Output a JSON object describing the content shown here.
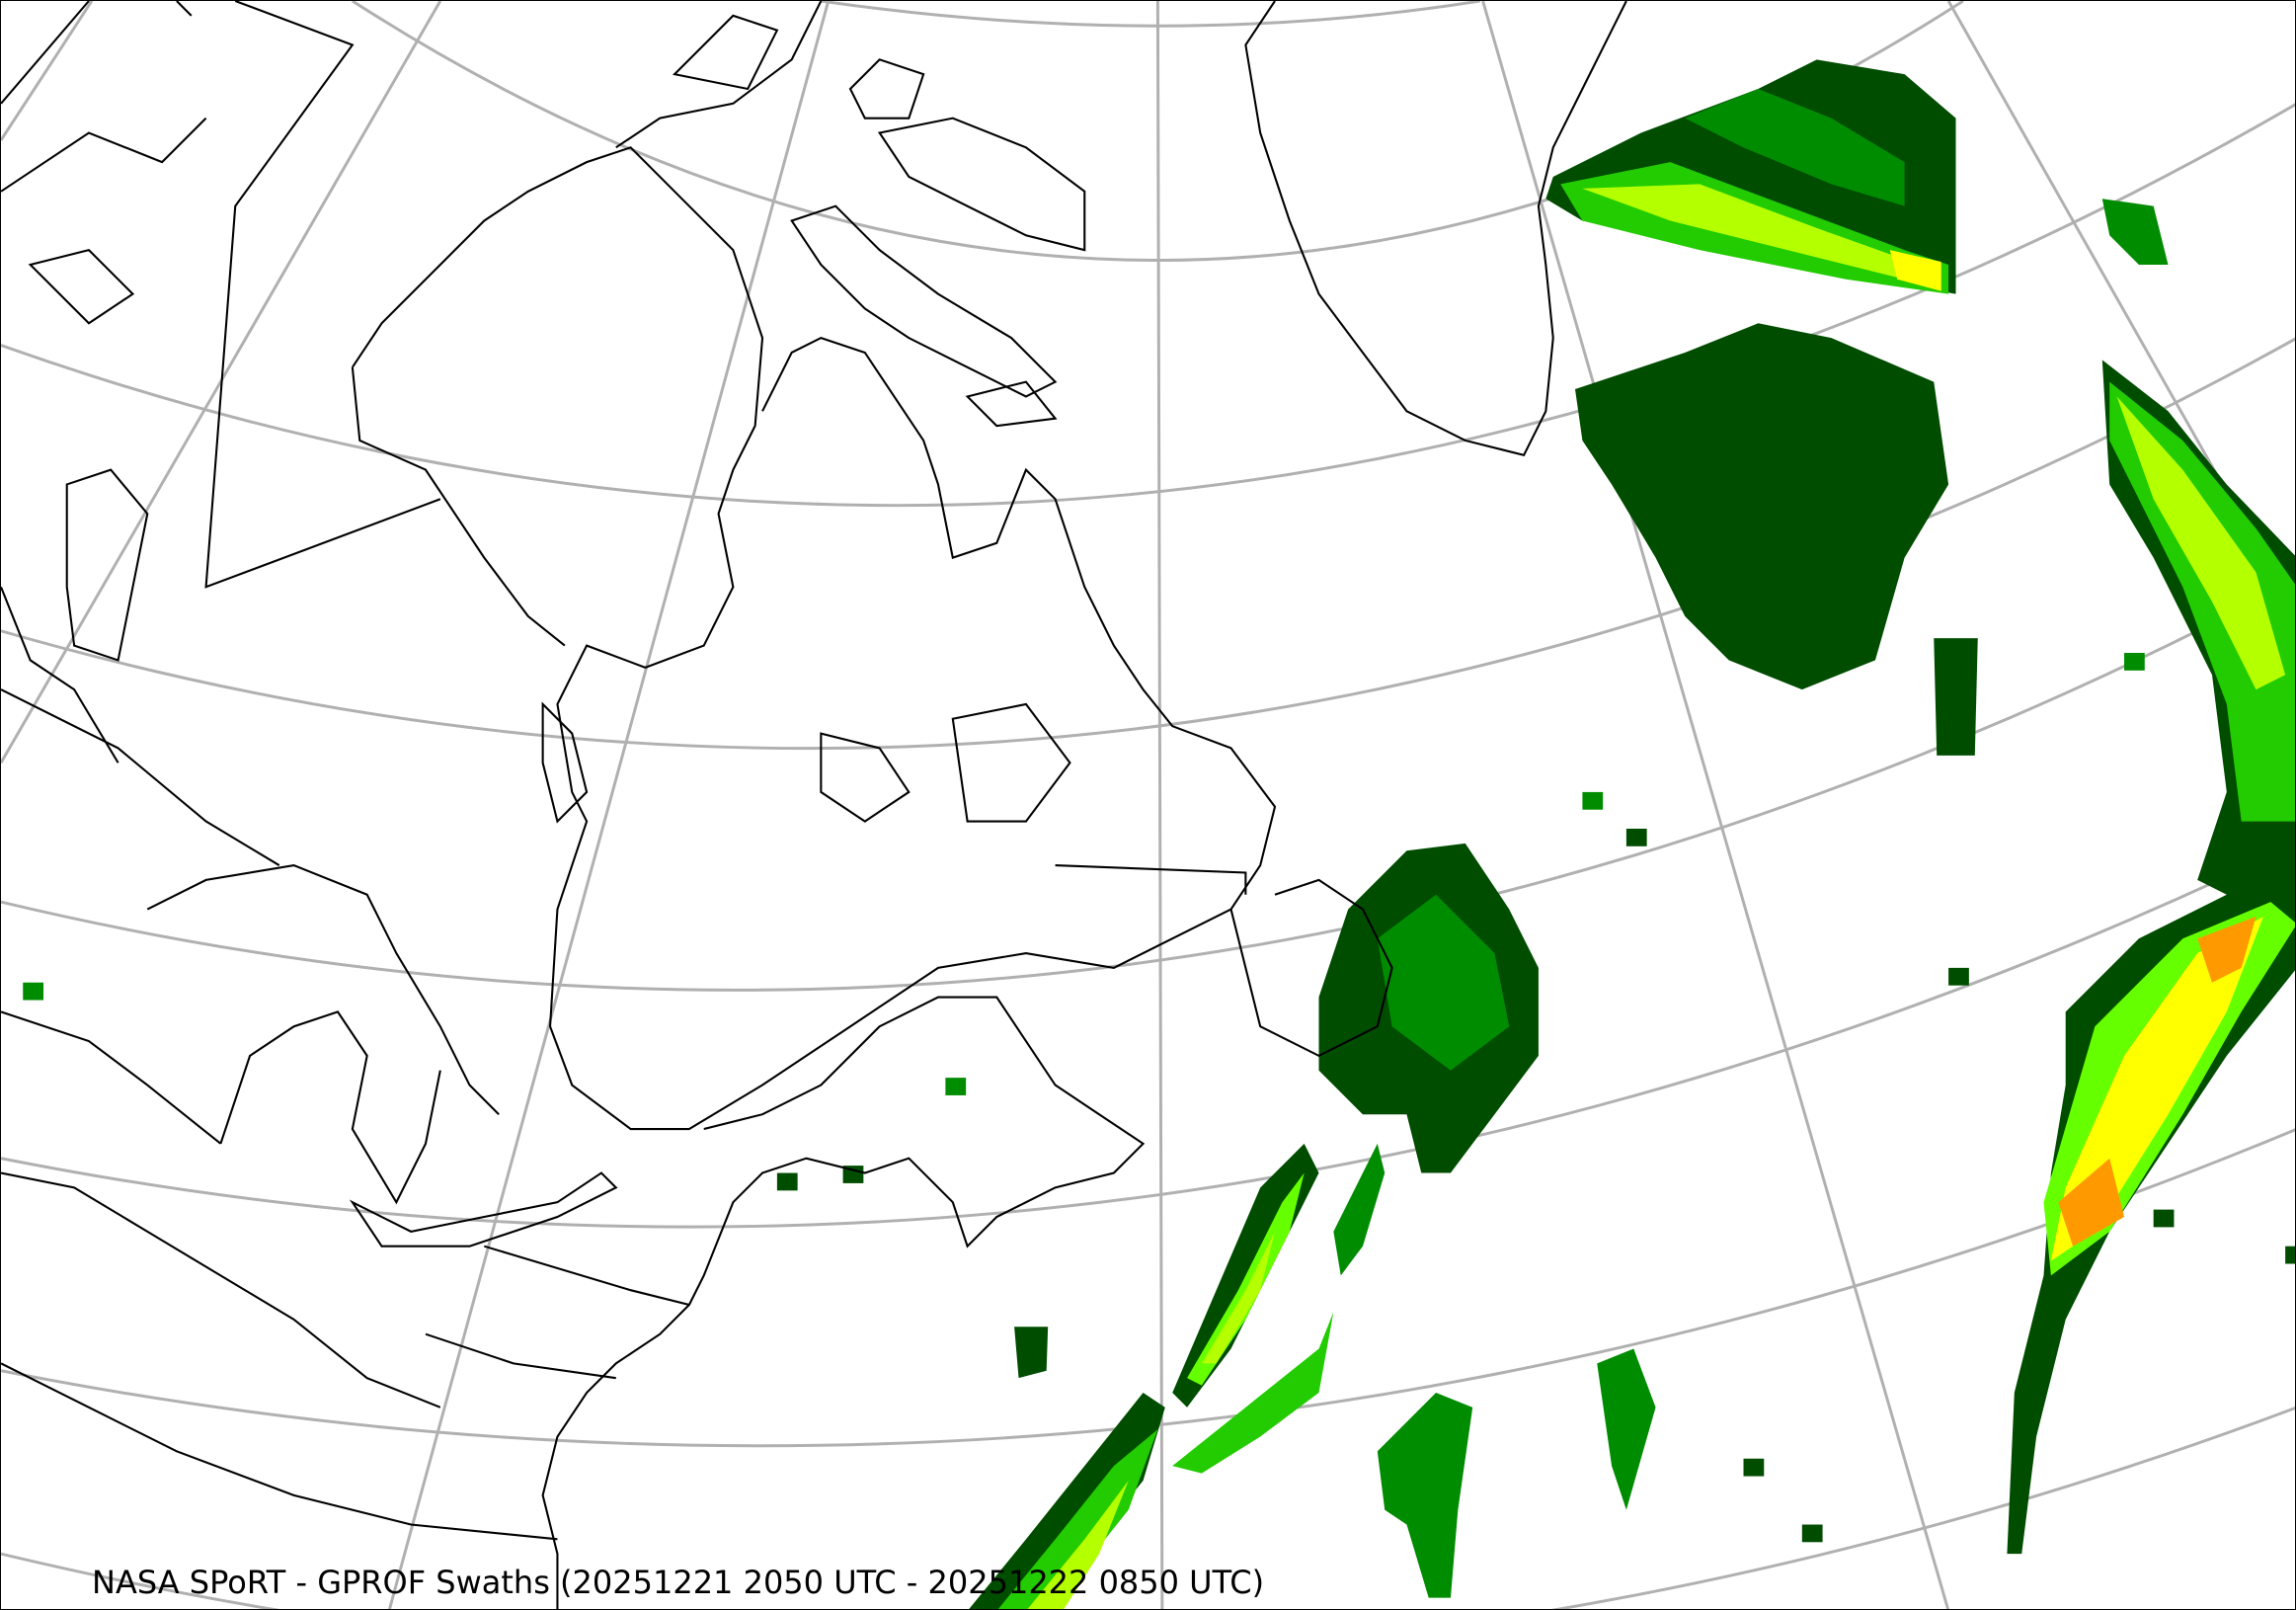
{
  "map": {
    "caption": "NASA SPoRT - GPROF Swaths (20251221 2050 UTC - 20251222 0850 UTC)",
    "projection": "lambert-conformal",
    "region": "Northeastern North America, Greenland and North Atlantic",
    "graticule_color": "#b0b0b0",
    "coastline_color": "#000000",
    "precip_colors": [
      "#004d00",
      "#008c00",
      "#22cc00",
      "#66ff00",
      "#b4ff00",
      "#ffff00",
      "#ff9900"
    ]
  }
}
